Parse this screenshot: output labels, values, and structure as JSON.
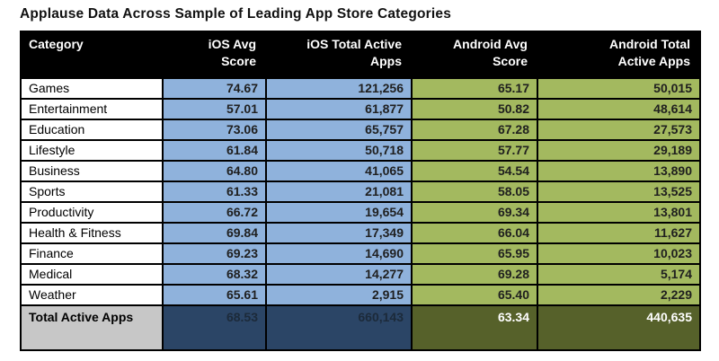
{
  "title": "Applause Data Across Sample of Leading App Store Categories",
  "chart_data": {
    "type": "table",
    "title": "Applause Data Across Sample of Leading App Store Categories",
    "columns": [
      {
        "label": "Category",
        "lines": [
          "Category"
        ]
      },
      {
        "label": "iOS Avg Score",
        "lines": [
          "iOS Avg",
          "Score"
        ]
      },
      {
        "label": "iOS Total Active Apps",
        "lines": [
          "iOS Total Active",
          "Apps"
        ]
      },
      {
        "label": "Android Avg Score",
        "lines": [
          "Android Avg",
          "Score"
        ]
      },
      {
        "label": "Android Total Active Apps",
        "lines": [
          "Android Total",
          "Active Apps"
        ]
      }
    ],
    "rows": [
      [
        "Games",
        "74.67",
        "121,256",
        "65.17",
        "50,015"
      ],
      [
        "Entertainment",
        "57.01",
        "61,877",
        "50.82",
        "48,614"
      ],
      [
        "Education",
        "73.06",
        "65,757",
        "67.28",
        "27,573"
      ],
      [
        "Lifestyle",
        "61.84",
        "50,718",
        "57.77",
        "29,189"
      ],
      [
        "Business",
        "64.80",
        "41,065",
        "54.54",
        "13,890"
      ],
      [
        "Sports",
        "61.33",
        "21,081",
        "58.05",
        "13,525"
      ],
      [
        "Productivity",
        "66.72",
        "19,654",
        "69.34",
        "13,801"
      ],
      [
        "Health & Fitness",
        "69.84",
        "17,349",
        "66.04",
        "11,627"
      ],
      [
        "Finance",
        "69.23",
        "14,690",
        "65.95",
        "10,023"
      ],
      [
        "Medical",
        "68.32",
        "14,277",
        "69.28",
        "5,174"
      ],
      [
        "Weather",
        "65.61",
        "2,915",
        "65.40",
        "2,229"
      ]
    ],
    "total_row": {
      "label": "Total Active Apps",
      "values": [
        "68.53",
        "660,143",
        "63.34",
        "440,635"
      ]
    }
  },
  "colors": {
    "header_bg": "#000000",
    "header_text": "#ffffff",
    "ios_cell": "#8fb2dc",
    "android_cell": "#a3b95f",
    "ios_total": "#2b4566",
    "ios_total_text": "#1c2a3a",
    "android_total": "#56612a",
    "android_total_text": "#ffffff",
    "total_label_bg": "#c7c7c7"
  }
}
